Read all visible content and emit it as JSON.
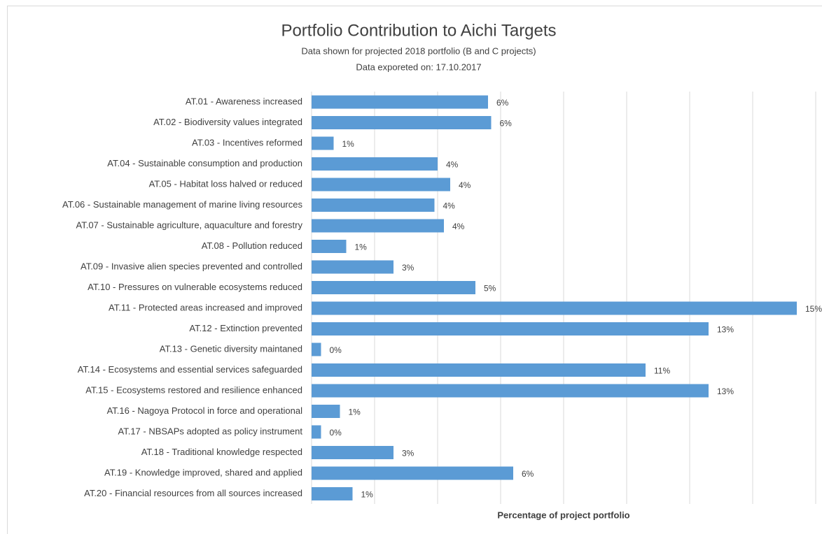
{
  "chart_data": {
    "type": "hbar",
    "title": "Portfolio Contribution to Aichi Targets",
    "subtitle": [
      "Data shown for projected 2018 portfolio  (B and C projects)",
      "Data exporeted  on: 17.10.2017"
    ],
    "x_label": "Percentage of project portfolio",
    "categories": [
      "AT.01 - Awareness increased",
      "AT.02 - Biodiversity values integrated",
      "AT.03 - Incentives reformed",
      "AT.04 - Sustainable consumption and production",
      "AT.05 - Habitat loss halved or reduced",
      "AT.06 - Sustainable management of marine living resources",
      "AT.07 - Sustainable agriculture, aquaculture and forestry",
      "AT.08 - Pollution reduced",
      "AT.09 - Invasive alien species prevented and controlled",
      "AT.10 - Pressures on vulnerable ecosystems reduced",
      "AT.11 - Protected areas increased and improved",
      "AT.12 - Extinction prevented",
      "AT.13 - Genetic diversity maintaned",
      "AT.14 - Ecosystems and essential services safeguarded",
      "AT.15 - Ecosystems restored and resilience enhanced",
      "AT.16 - Nagoya Protocol in force and operational",
      "AT.17 - NBSAPs adopted as policy instrument",
      "AT.18 - Traditional knowledge respected",
      "AT.19 - Knowledge improved, shared and applied",
      "AT.20 - Financial resources from all sources increased"
    ],
    "values": [
      5.6,
      5.7,
      0.7,
      4.0,
      4.4,
      3.9,
      4.2,
      1.1,
      2.6,
      5.2,
      15.4,
      12.6,
      0.3,
      10.6,
      12.6,
      0.9,
      0.3,
      2.6,
      6.4,
      1.3
    ],
    "value_labels": [
      "6%",
      "6%",
      "1%",
      "4%",
      "4%",
      "4%",
      "4%",
      "1%",
      "3%",
      "5%",
      "15%",
      "13%",
      "0%",
      "11%",
      "13%",
      "1%",
      "0%",
      "3%",
      "6%",
      "1%"
    ],
    "color": "#5b9bd5",
    "xlim": [
      0,
      16
    ],
    "xticks": [
      0,
      2,
      4,
      6,
      8,
      10,
      12,
      14,
      16
    ],
    "grid": true
  }
}
